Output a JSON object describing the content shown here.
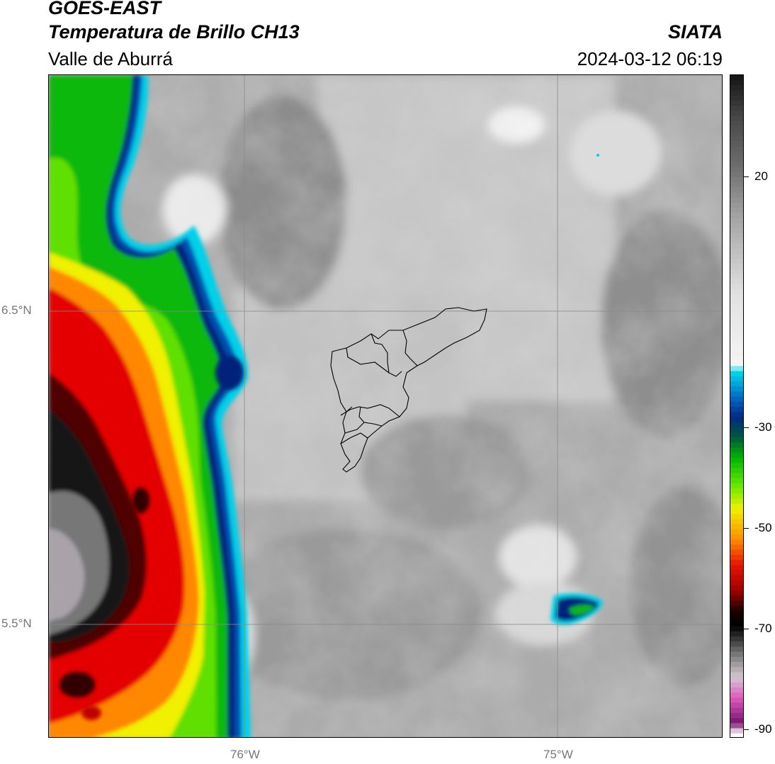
{
  "header": {
    "satellite": "GOES-EAST",
    "product": "Temperatura de Brillo CH13",
    "region": "Valle de Aburrá",
    "organization": "SIATA",
    "timestamp": "2024-03-12 06:19"
  },
  "map": {
    "lat_labels": [
      "6.5°N",
      "5.5°N"
    ],
    "lon_labels": [
      "76°W",
      "75°W"
    ],
    "lat_values": [
      6.5,
      5.5
    ],
    "lon_values": [
      -76,
      -75
    ],
    "lon_range": [
      -76.63,
      -74.47
    ],
    "lat_range": [
      5.14,
      7.25
    ]
  },
  "colorbar": {
    "labels": [
      "20",
      "-30",
      "-50",
      "-70",
      "-90"
    ],
    "values": [
      20,
      -30,
      -50,
      -70,
      -90
    ],
    "range": [
      -92,
      38
    ],
    "colors": {
      "warm_gray_dark": "#141414",
      "cold_white": "#f2f2f2",
      "cyan": "#00d0e8",
      "deep_blue": "#00207a",
      "green": "#00c000",
      "yellow": "#f0f000",
      "orange": "#ff8000",
      "red": "#e00000",
      "dark_red": "#200000",
      "magenta": "#e060c0",
      "purple": "#7a1070"
    }
  }
}
